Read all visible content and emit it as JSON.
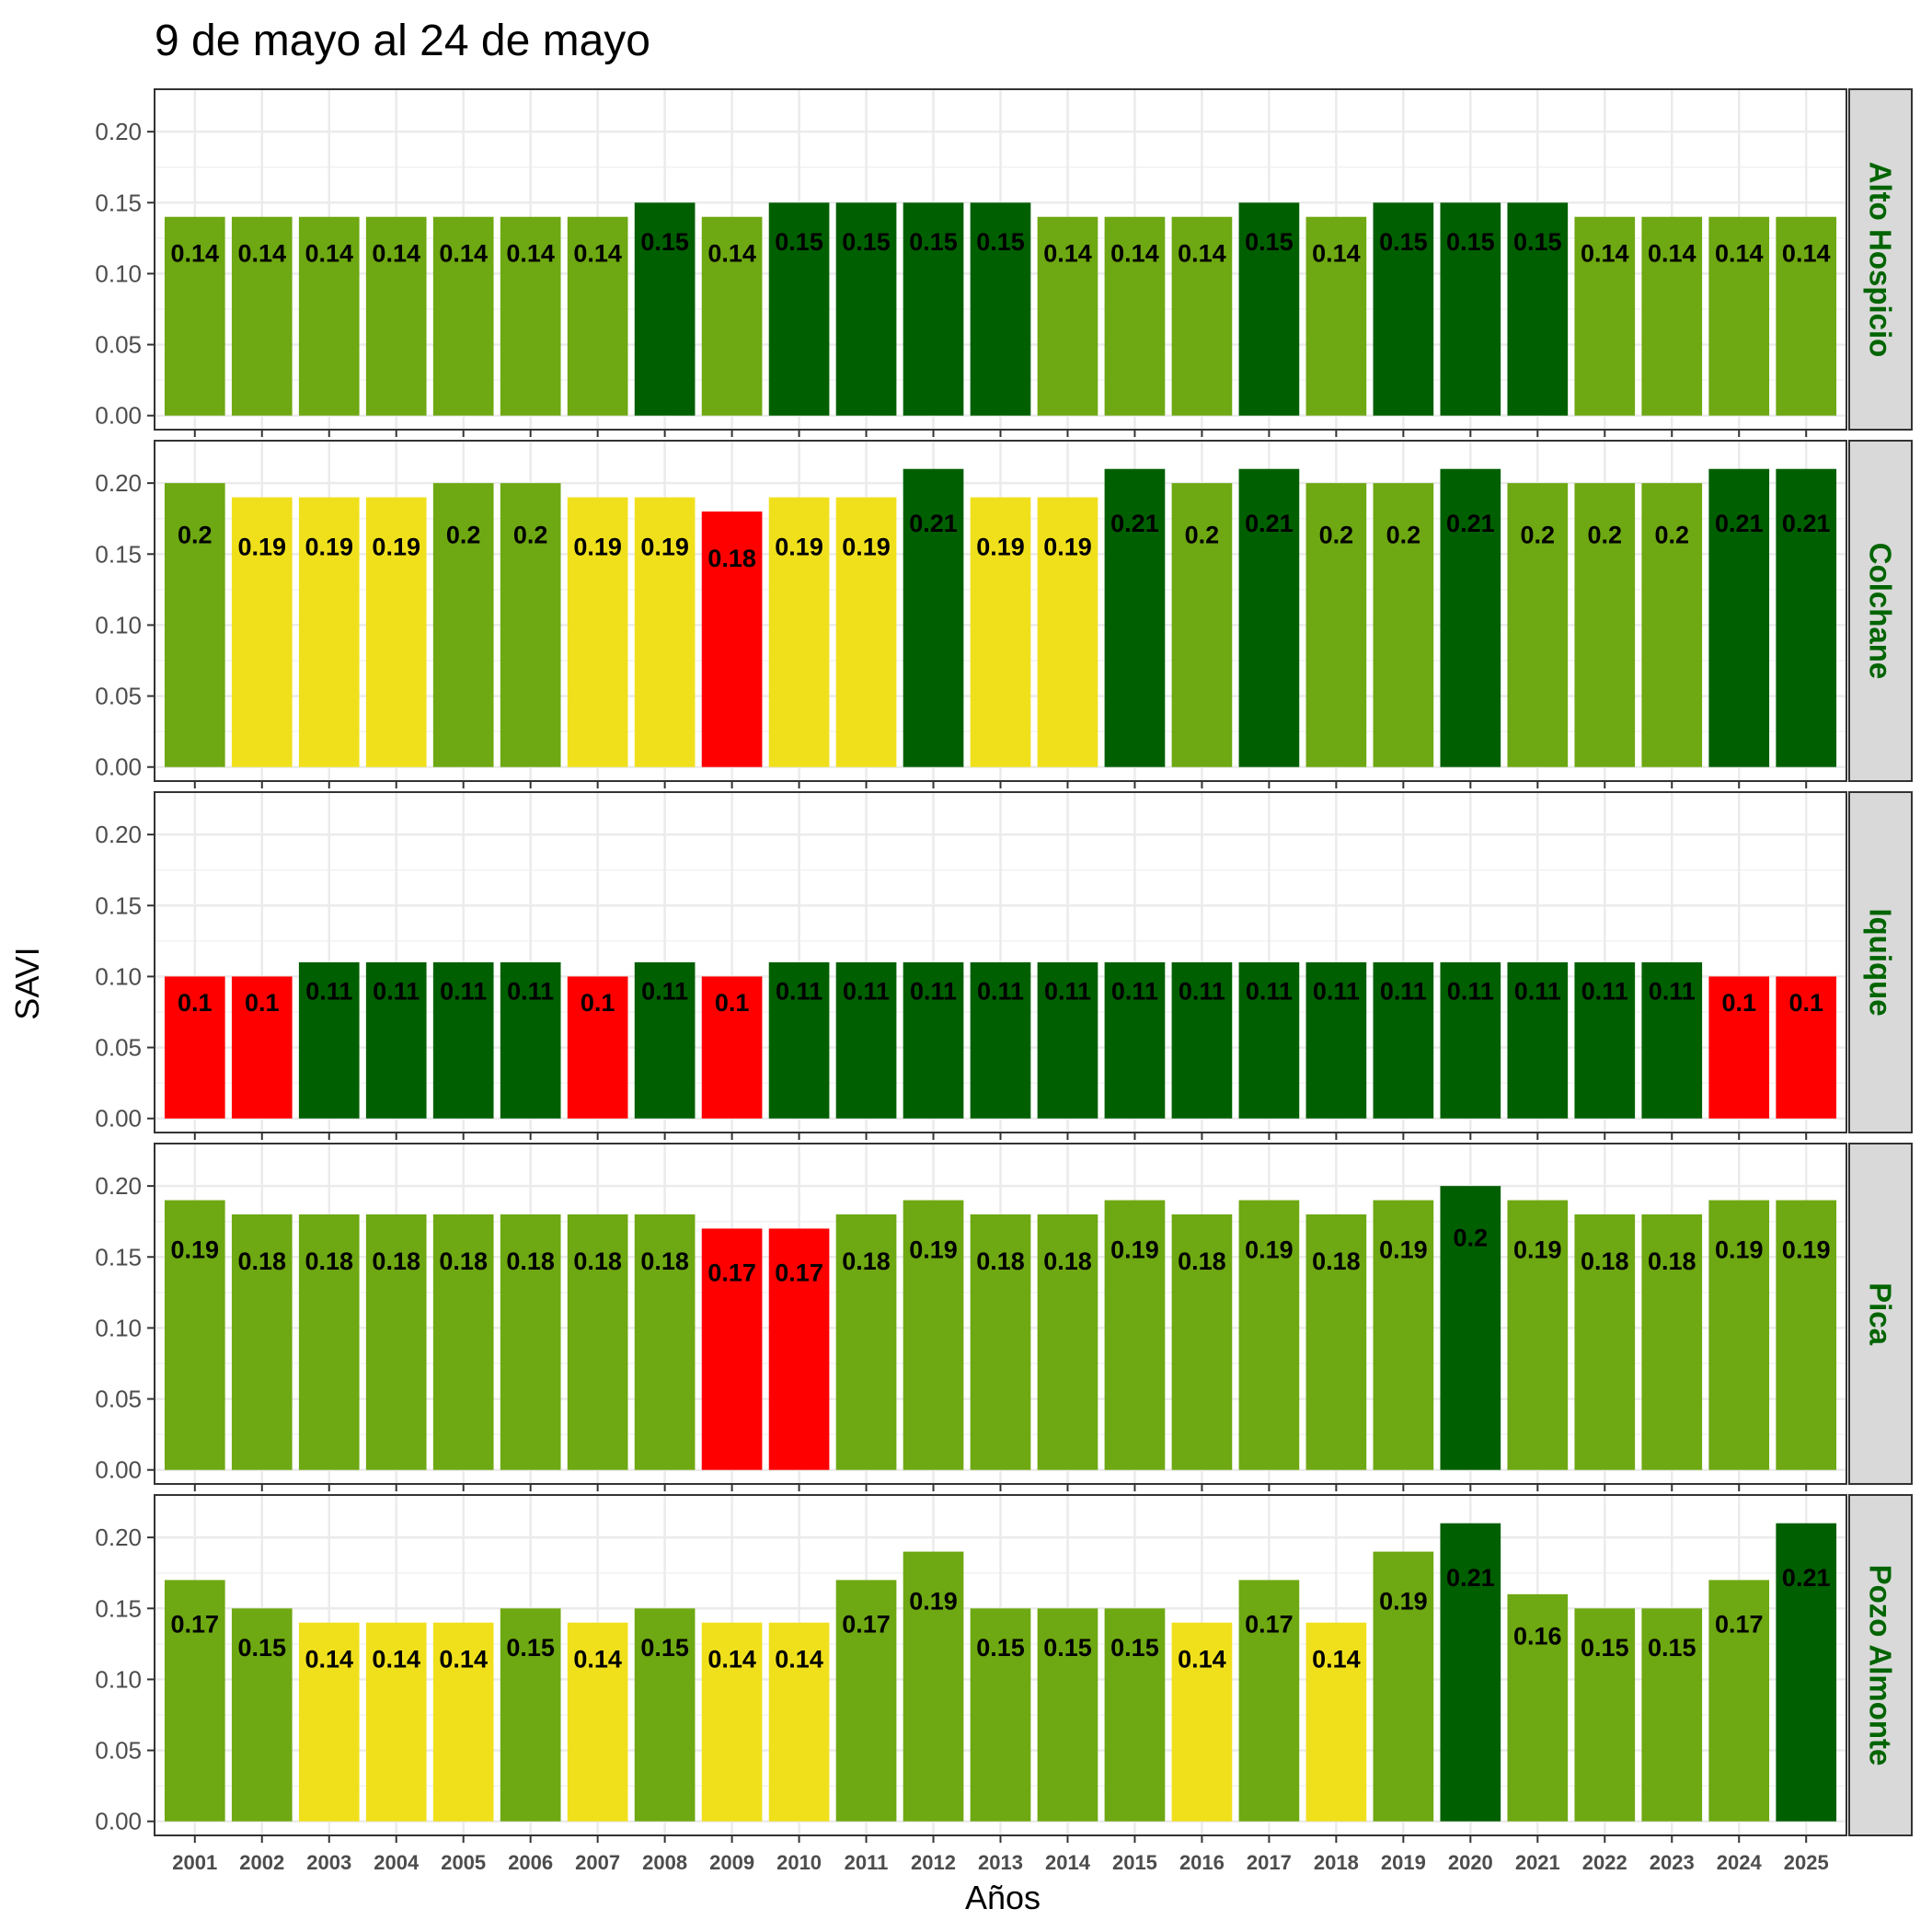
{
  "chart_data": {
    "type": "bar",
    "title": "9 de mayo al 24 de mayo",
    "xlabel": "Años",
    "ylabel": "SAVI",
    "ylim": [
      0,
      0.22
    ],
    "yticks": [
      "0.00",
      "0.05",
      "0.10",
      "0.15",
      "0.20"
    ],
    "grid": true,
    "colors": {
      "dark_green": "#005f00",
      "green": "#6ea812",
      "yellow": "#f0e01c",
      "red": "#ff0000",
      "strip_bg": "#d9d9d9",
      "strip_text": "#006400"
    },
    "categories": [
      "2001",
      "2002",
      "2003",
      "2004",
      "2005",
      "2006",
      "2007",
      "2008",
      "2009",
      "2010",
      "2011",
      "2012",
      "2013",
      "2014",
      "2015",
      "2016",
      "2017",
      "2018",
      "2019",
      "2020",
      "2021",
      "2022",
      "2023",
      "2024",
      "2025"
    ],
    "panels": [
      {
        "name": "Alto Hospicio",
        "values": [
          0.14,
          0.14,
          0.14,
          0.14,
          0.14,
          0.14,
          0.14,
          0.15,
          0.14,
          0.15,
          0.15,
          0.15,
          0.15,
          0.14,
          0.14,
          0.14,
          0.15,
          0.14,
          0.15,
          0.15,
          0.15,
          0.14,
          0.14,
          0.14,
          0.14
        ],
        "labels": [
          "0.14",
          "0.14",
          "0.14",
          "0.14",
          "0.14",
          "0.14",
          "0.14",
          "0.15",
          "0.14",
          "0.15",
          "0.15",
          "0.15",
          "0.15",
          "0.14",
          "0.14",
          "0.14",
          "0.15",
          "0.14",
          "0.15",
          "0.15",
          "0.15",
          "0.14",
          "0.14",
          "0.14",
          "0.14"
        ],
        "colors": [
          "green",
          "green",
          "green",
          "green",
          "green",
          "green",
          "green",
          "dark_green",
          "green",
          "dark_green",
          "dark_green",
          "dark_green",
          "dark_green",
          "green",
          "green",
          "green",
          "dark_green",
          "green",
          "dark_green",
          "dark_green",
          "dark_green",
          "green",
          "green",
          "green",
          "green"
        ]
      },
      {
        "name": "Colchane",
        "values": [
          0.2,
          0.19,
          0.19,
          0.19,
          0.2,
          0.2,
          0.19,
          0.19,
          0.18,
          0.19,
          0.19,
          0.21,
          0.19,
          0.19,
          0.21,
          0.2,
          0.21,
          0.2,
          0.2,
          0.21,
          0.2,
          0.2,
          0.2,
          0.21,
          0.21
        ],
        "labels": [
          "0.2",
          "0.19",
          "0.19",
          "0.19",
          "0.2",
          "0.2",
          "0.19",
          "0.19",
          "0.18",
          "0.19",
          "0.19",
          "0.21",
          "0.19",
          "0.19",
          "0.21",
          "0.2",
          "0.21",
          "0.2",
          "0.2",
          "0.21",
          "0.2",
          "0.2",
          "0.2",
          "0.21",
          "0.21"
        ],
        "colors": [
          "green",
          "yellow",
          "yellow",
          "yellow",
          "green",
          "green",
          "yellow",
          "yellow",
          "red",
          "yellow",
          "yellow",
          "dark_green",
          "yellow",
          "yellow",
          "dark_green",
          "green",
          "dark_green",
          "green",
          "green",
          "dark_green",
          "green",
          "green",
          "green",
          "dark_green",
          "dark_green"
        ]
      },
      {
        "name": "Iquique",
        "values": [
          0.1,
          0.1,
          0.11,
          0.11,
          0.11,
          0.11,
          0.1,
          0.11,
          0.1,
          0.11,
          0.11,
          0.11,
          0.11,
          0.11,
          0.11,
          0.11,
          0.11,
          0.11,
          0.11,
          0.11,
          0.11,
          0.11,
          0.11,
          0.1,
          0.1
        ],
        "labels": [
          "0.1",
          "0.1",
          "0.11",
          "0.11",
          "0.11",
          "0.11",
          "0.1",
          "0.11",
          "0.1",
          "0.11",
          "0.11",
          "0.11",
          "0.11",
          "0.11",
          "0.11",
          "0.11",
          "0.11",
          "0.11",
          "0.11",
          "0.11",
          "0.11",
          "0.11",
          "0.11",
          "0.1",
          "0.1"
        ],
        "colors": [
          "red",
          "red",
          "dark_green",
          "dark_green",
          "dark_green",
          "dark_green",
          "red",
          "dark_green",
          "red",
          "dark_green",
          "dark_green",
          "dark_green",
          "dark_green",
          "dark_green",
          "dark_green",
          "dark_green",
          "dark_green",
          "dark_green",
          "dark_green",
          "dark_green",
          "dark_green",
          "dark_green",
          "dark_green",
          "red",
          "red"
        ]
      },
      {
        "name": "Pica",
        "values": [
          0.19,
          0.18,
          0.18,
          0.18,
          0.18,
          0.18,
          0.18,
          0.18,
          0.17,
          0.17,
          0.18,
          0.19,
          0.18,
          0.18,
          0.19,
          0.18,
          0.19,
          0.18,
          0.19,
          0.2,
          0.19,
          0.18,
          0.18,
          0.19,
          0.19
        ],
        "labels": [
          "0.19",
          "0.18",
          "0.18",
          "0.18",
          "0.18",
          "0.18",
          "0.18",
          "0.18",
          "0.17",
          "0.17",
          "0.18",
          "0.19",
          "0.18",
          "0.18",
          "0.19",
          "0.18",
          "0.19",
          "0.18",
          "0.19",
          "0.2",
          "0.19",
          "0.18",
          "0.18",
          "0.19",
          "0.19"
        ],
        "colors": [
          "green",
          "green",
          "green",
          "green",
          "green",
          "green",
          "green",
          "green",
          "red",
          "red",
          "green",
          "green",
          "green",
          "green",
          "green",
          "green",
          "green",
          "green",
          "green",
          "dark_green",
          "green",
          "green",
          "green",
          "green",
          "green"
        ]
      },
      {
        "name": "Pozo Almonte",
        "values": [
          0.17,
          0.15,
          0.14,
          0.14,
          0.14,
          0.15,
          0.14,
          0.15,
          0.14,
          0.14,
          0.17,
          0.19,
          0.15,
          0.15,
          0.15,
          0.14,
          0.17,
          0.14,
          0.19,
          0.21,
          0.16,
          0.15,
          0.15,
          0.17,
          0.21
        ],
        "labels": [
          "0.17",
          "0.15",
          "0.14",
          "0.14",
          "0.14",
          "0.15",
          "0.14",
          "0.15",
          "0.14",
          "0.14",
          "0.17",
          "0.19",
          "0.15",
          "0.15",
          "0.15",
          "0.14",
          "0.17",
          "0.14",
          "0.19",
          "0.21",
          "0.16",
          "0.15",
          "0.15",
          "0.17",
          "0.21"
        ],
        "colors": [
          "green",
          "green",
          "yellow",
          "yellow",
          "yellow",
          "green",
          "yellow",
          "green",
          "yellow",
          "yellow",
          "green",
          "green",
          "green",
          "green",
          "green",
          "yellow",
          "green",
          "yellow",
          "green",
          "dark_green",
          "green",
          "green",
          "green",
          "green",
          "dark_green"
        ]
      }
    ]
  }
}
